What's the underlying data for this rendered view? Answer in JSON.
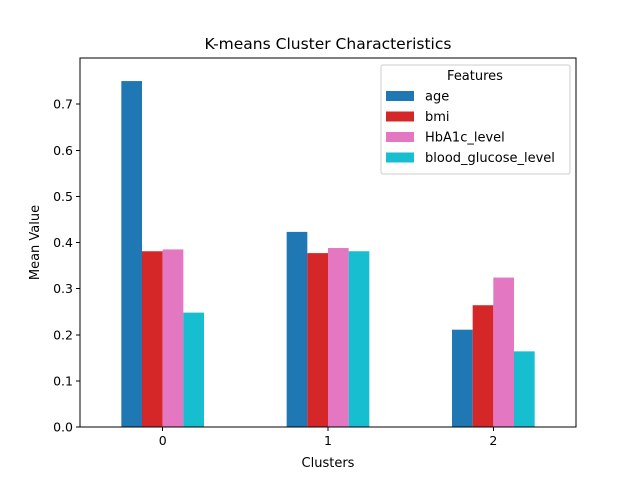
{
  "chart_data": {
    "type": "bar",
    "title": "K-means Cluster Characteristics",
    "xlabel": "Clusters",
    "ylabel": "Mean Value",
    "categories": [
      "0",
      "1",
      "2"
    ],
    "ylim": [
      0,
      0.8
    ],
    "yticks": [
      0.0,
      0.1,
      0.2,
      0.3,
      0.4,
      0.5,
      0.6,
      0.7
    ],
    "ytick_labels": [
      "0.0",
      "0.1",
      "0.2",
      "0.3",
      "0.4",
      "0.5",
      "0.6",
      "0.7"
    ],
    "grid": false,
    "legend": {
      "title": "Features",
      "placement": "top-right"
    },
    "series": [
      {
        "name": "age",
        "color": "#1f77b4",
        "values": [
          0.75,
          0.423,
          0.211
        ]
      },
      {
        "name": "bmi",
        "color": "#d62728",
        "values": [
          0.381,
          0.377,
          0.264
        ]
      },
      {
        "name": "HbA1c_level",
        "color": "#e377c2",
        "values": [
          0.385,
          0.388,
          0.324
        ]
      },
      {
        "name": "blood_glucose_level",
        "color": "#17becf",
        "values": [
          0.248,
          0.381,
          0.164
        ]
      }
    ]
  }
}
